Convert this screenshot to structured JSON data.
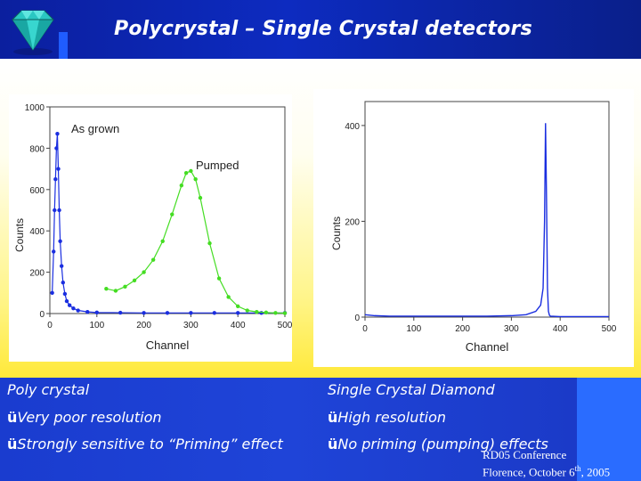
{
  "header": {
    "title": "Polycrystal – Single Crystal  detectors",
    "accent_color": "#0d2bc0"
  },
  "logo": {
    "icon": "diamond-icon"
  },
  "chart_data": [
    {
      "type": "scatter",
      "xlabel": "Channel",
      "ylabel": "Counts",
      "xlim": [
        0,
        500
      ],
      "ylim": [
        0,
        1000
      ],
      "x_ticks": [
        "0",
        "100",
        "200",
        "300",
        "400",
        "500"
      ],
      "y_ticks": [
        "0",
        "200",
        "400",
        "600",
        "800",
        "1000"
      ],
      "annotations": [
        "As grown",
        "Pumped"
      ],
      "series": [
        {
          "name": "As grown",
          "color": "#1a2ee0",
          "x": [
            5,
            8,
            10,
            12,
            14,
            16,
            18,
            20,
            22,
            25,
            28,
            32,
            36,
            42,
            50,
            60,
            80,
            100,
            150,
            200,
            250,
            300,
            350,
            400,
            450,
            500
          ],
          "y": [
            100,
            300,
            500,
            650,
            800,
            870,
            700,
            500,
            350,
            230,
            150,
            95,
            60,
            40,
            25,
            15,
            8,
            5,
            4,
            3,
            3,
            3,
            3,
            3,
            3,
            3
          ]
        },
        {
          "name": "Pumped",
          "color": "#44dd22",
          "x": [
            120,
            140,
            160,
            180,
            200,
            220,
            240,
            260,
            280,
            290,
            300,
            310,
            320,
            340,
            360,
            380,
            400,
            420,
            440,
            460,
            480,
            500
          ],
          "y": [
            120,
            110,
            130,
            160,
            200,
            260,
            350,
            480,
            620,
            680,
            690,
            650,
            560,
            340,
            170,
            80,
            35,
            15,
            8,
            5,
            3,
            2
          ]
        }
      ]
    },
    {
      "type": "line",
      "xlabel": "Channel",
      "ylabel": "Counts",
      "xlim": [
        0,
        500
      ],
      "ylim": [
        0,
        450
      ],
      "x_ticks": [
        "0",
        "100",
        "200",
        "300",
        "400",
        "500"
      ],
      "y_ticks": [
        "0",
        "200",
        "400"
      ],
      "series": [
        {
          "color": "#1a2ee0",
          "x": [
            0,
            20,
            50,
            100,
            150,
            200,
            250,
            300,
            330,
            350,
            360,
            365,
            368,
            370,
            372,
            374,
            376,
            378,
            380,
            400,
            450,
            500
          ],
          "y": [
            5,
            3,
            2,
            2,
            2,
            2,
            2,
            3,
            5,
            12,
            25,
            60,
            200,
            405,
            250,
            60,
            12,
            4,
            2,
            1,
            1,
            1
          ]
        }
      ]
    }
  ],
  "panels": {
    "left": {
      "heading": "Poly crystal",
      "bullets": [
        "Very poor resolution",
        "Strongly sensitive to “Priming” effect"
      ]
    },
    "right": {
      "heading": "Single Crystal Diamond",
      "bullets": [
        "High resolution",
        "No priming (pumping) effects"
      ]
    }
  },
  "bullet_glyph": "ü",
  "footer": {
    "line1": "RD05 Conference",
    "line2_prefix": "Florence, October 6",
    "line2_sup": "th",
    "line2_suffix": ", 2005"
  }
}
